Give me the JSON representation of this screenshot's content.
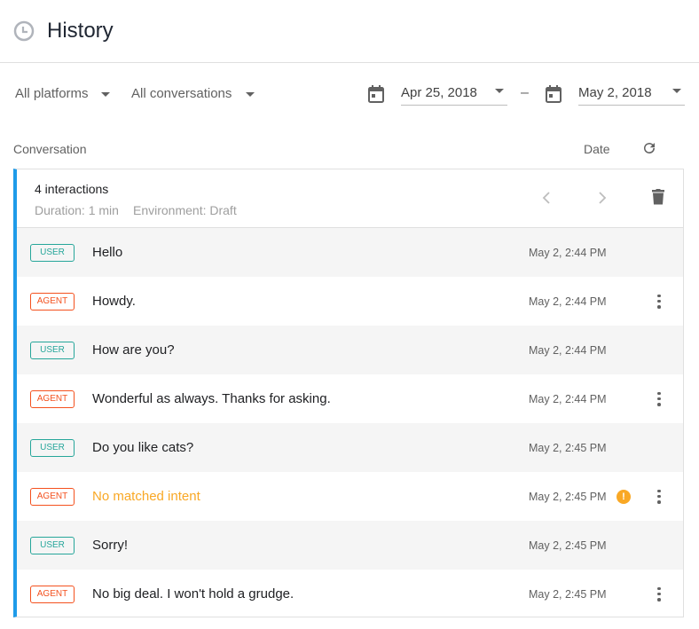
{
  "header": {
    "title": "History",
    "icon": "history-clock-icon"
  },
  "filters": {
    "platform": "All platforms",
    "conversations": "All conversations",
    "date_from": "Apr 25, 2018",
    "date_separator": "–",
    "date_to": "May 2, 2018"
  },
  "columns": {
    "conversation": "Conversation",
    "date": "Date"
  },
  "conversation": {
    "title": "4 interactions",
    "duration": "Duration: 1 min",
    "environment": "Environment: Draft",
    "rows": [
      {
        "role": "USER",
        "text": "Hello",
        "time": "May 2, 2:44 PM",
        "menu": false,
        "warning": false
      },
      {
        "role": "AGENT",
        "text": "Howdy.",
        "time": "May 2, 2:44 PM",
        "menu": true,
        "warning": false
      },
      {
        "role": "USER",
        "text": "How are you?",
        "time": "May 2, 2:44 PM",
        "menu": false,
        "warning": false
      },
      {
        "role": "AGENT",
        "text": "Wonderful as always. Thanks for asking.",
        "time": "May 2, 2:44 PM",
        "menu": true,
        "warning": false
      },
      {
        "role": "USER",
        "text": "Do you like cats?",
        "time": "May 2, 2:45 PM",
        "menu": false,
        "warning": false
      },
      {
        "role": "AGENT",
        "text": "No matched intent",
        "time": "May 2, 2:45 PM",
        "menu": true,
        "warning": true
      },
      {
        "role": "USER",
        "text": "Sorry!",
        "time": "May 2, 2:45 PM",
        "menu": false,
        "warning": false
      },
      {
        "role": "AGENT",
        "text": "No big deal. I won't hold a grudge.",
        "time": "May 2, 2:45 PM",
        "menu": true,
        "warning": false
      }
    ]
  },
  "colors": {
    "accent": "#1e9be9",
    "user": "#26a69a",
    "agent": "#f4511e",
    "warning": "#f9a825"
  }
}
